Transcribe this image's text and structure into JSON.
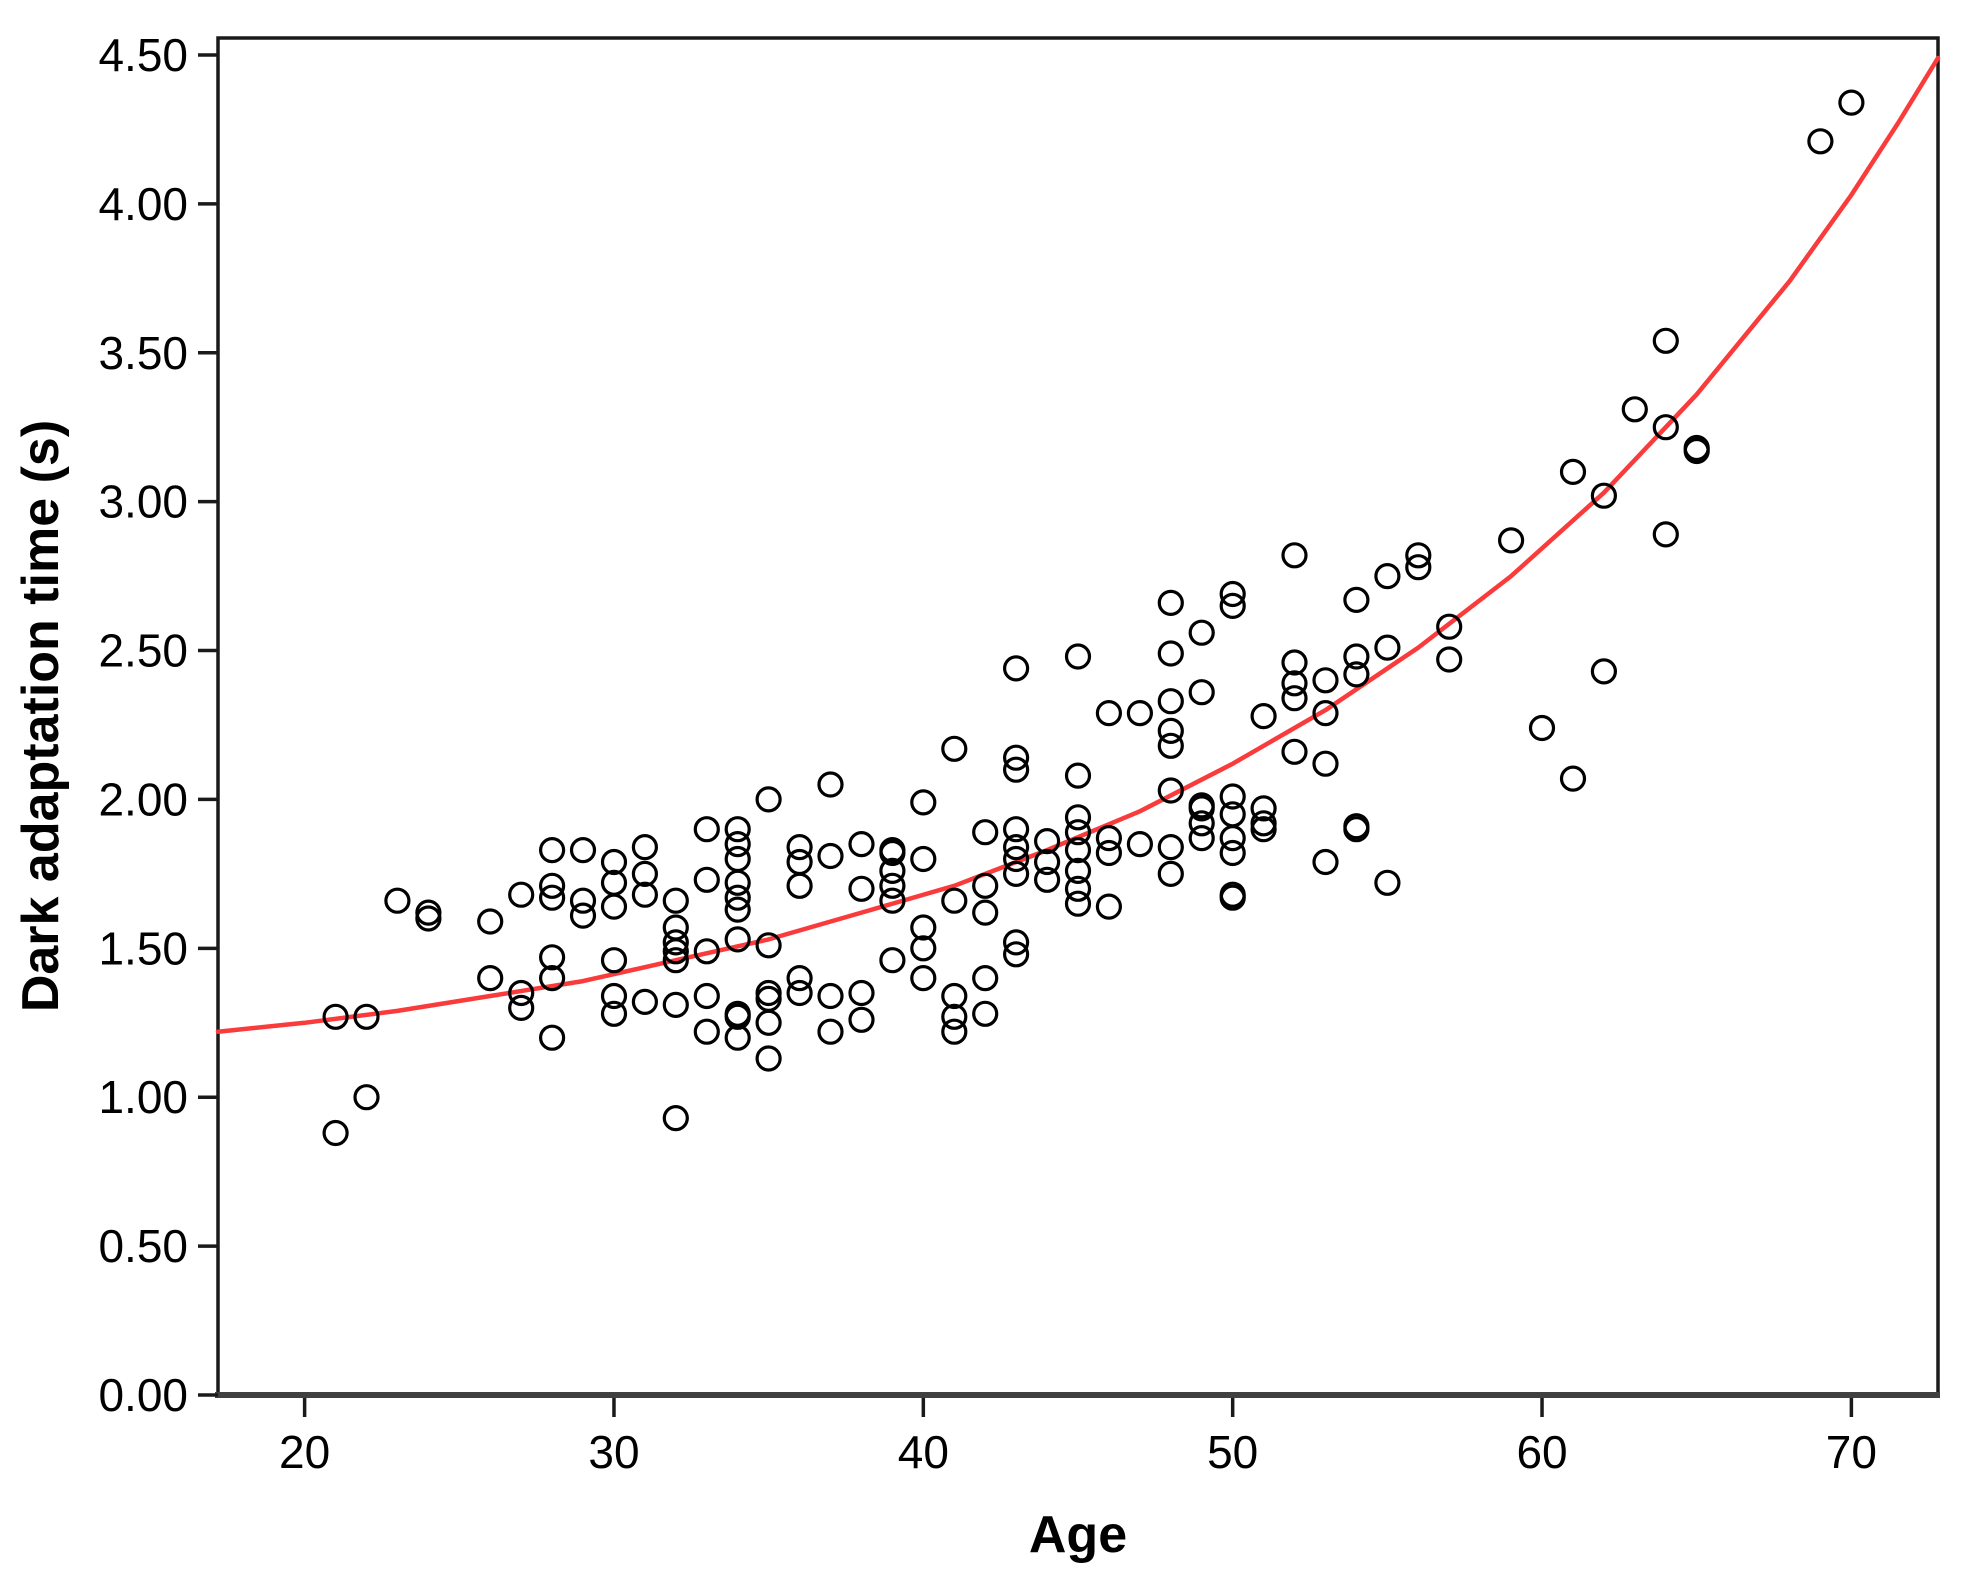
{
  "chart_data": {
    "type": "scatter",
    "title": "",
    "xlabel": "Age",
    "ylabel": "Dark adaptation time (s)",
    "xlim": [
      17.2,
      72.8
    ],
    "ylim": [
      0,
      4.557
    ],
    "grid": false,
    "legend": "none",
    "x_ticks": [
      20,
      30,
      40,
      50,
      60,
      70
    ],
    "x_tick_labels": [
      "20",
      "30",
      "40",
      "50",
      "60",
      "70"
    ],
    "y_ticks": [
      0.0,
      0.5,
      1.0,
      1.5,
      2.0,
      2.5,
      3.0,
      3.5,
      4.0,
      4.5
    ],
    "y_tick_labels": [
      "0.00",
      "0.50",
      "1.00",
      "1.50",
      "2.00",
      "2.50",
      "3.00",
      "3.50",
      "4.00",
      "4.50"
    ],
    "marker": {
      "shape": "open-circle",
      "color": "#000000",
      "radius": 11.5,
      "stroke_width": 3.2
    },
    "frame_color": "#1a1a1a",
    "baseline_color": "#404040",
    "points": [
      [
        21,
        1.27
      ],
      [
        21,
        0.88
      ],
      [
        22,
        1.27
      ],
      [
        22,
        1.0
      ],
      [
        23,
        1.66
      ],
      [
        24,
        1.62
      ],
      [
        24,
        1.6
      ],
      [
        26,
        1.59
      ],
      [
        26,
        1.4
      ],
      [
        27,
        1.68
      ],
      [
        27,
        1.35
      ],
      [
        27,
        1.3
      ],
      [
        28,
        1.83
      ],
      [
        28,
        1.71
      ],
      [
        28,
        1.67
      ],
      [
        28,
        1.47
      ],
      [
        28,
        1.4
      ],
      [
        28,
        1.2
      ],
      [
        29,
        1.83
      ],
      [
        29,
        1.66
      ],
      [
        29,
        1.61
      ],
      [
        30,
        1.79
      ],
      [
        30,
        1.72
      ],
      [
        30,
        1.64
      ],
      [
        30,
        1.46
      ],
      [
        30,
        1.34
      ],
      [
        30,
        1.28
      ],
      [
        31,
        1.84
      ],
      [
        31,
        1.75
      ],
      [
        31,
        1.68
      ],
      [
        31,
        1.32
      ],
      [
        32,
        1.66
      ],
      [
        32,
        1.57
      ],
      [
        32,
        1.52
      ],
      [
        32,
        1.49
      ],
      [
        32,
        1.46
      ],
      [
        32,
        1.31
      ],
      [
        32,
        0.93
      ],
      [
        33,
        1.9
      ],
      [
        33,
        1.73
      ],
      [
        33,
        1.49
      ],
      [
        33,
        1.34
      ],
      [
        33,
        1.22
      ],
      [
        34,
        1.9
      ],
      [
        34,
        1.85
      ],
      [
        34,
        1.8
      ],
      [
        34,
        1.72
      ],
      [
        34,
        1.67
      ],
      [
        34,
        1.63
      ],
      [
        34,
        1.53
      ],
      [
        34,
        1.28
      ],
      [
        34,
        1.27
      ],
      [
        34,
        1.2
      ],
      [
        35,
        2.0
      ],
      [
        35,
        1.51
      ],
      [
        35,
        1.35
      ],
      [
        35,
        1.33
      ],
      [
        35,
        1.25
      ],
      [
        35,
        1.13
      ],
      [
        36,
        1.84
      ],
      [
        36,
        1.79
      ],
      [
        36,
        1.71
      ],
      [
        36,
        1.4
      ],
      [
        36,
        1.35
      ],
      [
        37,
        2.05
      ],
      [
        37,
        1.81
      ],
      [
        37,
        1.34
      ],
      [
        37,
        1.22
      ],
      [
        38,
        1.85
      ],
      [
        38,
        1.7
      ],
      [
        38,
        1.35
      ],
      [
        38,
        1.26
      ],
      [
        39,
        1.83
      ],
      [
        39,
        1.82
      ],
      [
        39,
        1.76
      ],
      [
        39,
        1.71
      ],
      [
        39,
        1.66
      ],
      [
        39,
        1.46
      ],
      [
        40,
        1.99
      ],
      [
        40,
        1.8
      ],
      [
        40,
        1.57
      ],
      [
        40,
        1.5
      ],
      [
        40,
        1.4
      ],
      [
        41,
        2.17
      ],
      [
        41,
        1.66
      ],
      [
        41,
        1.34
      ],
      [
        41,
        1.27
      ],
      [
        41,
        1.22
      ],
      [
        42,
        1.89
      ],
      [
        42,
        1.71
      ],
      [
        42,
        1.62
      ],
      [
        42,
        1.4
      ],
      [
        42,
        1.28
      ],
      [
        43,
        2.44
      ],
      [
        43,
        2.14
      ],
      [
        43,
        2.1
      ],
      [
        43,
        1.9
      ],
      [
        43,
        1.84
      ],
      [
        43,
        1.8
      ],
      [
        43,
        1.75
      ],
      [
        43,
        1.52
      ],
      [
        43,
        1.48
      ],
      [
        44,
        1.86
      ],
      [
        44,
        1.79
      ],
      [
        44,
        1.73
      ],
      [
        45,
        2.48
      ],
      [
        45,
        2.08
      ],
      [
        45,
        1.94
      ],
      [
        45,
        1.89
      ],
      [
        45,
        1.83
      ],
      [
        45,
        1.76
      ],
      [
        45,
        1.7
      ],
      [
        45,
        1.65
      ],
      [
        46,
        2.29
      ],
      [
        46,
        1.87
      ],
      [
        46,
        1.82
      ],
      [
        46,
        1.64
      ],
      [
        47,
        2.29
      ],
      [
        47,
        1.85
      ],
      [
        48,
        2.66
      ],
      [
        48,
        2.49
      ],
      [
        48,
        2.33
      ],
      [
        48,
        2.23
      ],
      [
        48,
        2.18
      ],
      [
        48,
        2.03
      ],
      [
        48,
        1.84
      ],
      [
        48,
        1.75
      ],
      [
        49,
        2.56
      ],
      [
        49,
        2.36
      ],
      [
        49,
        1.98
      ],
      [
        49,
        1.97
      ],
      [
        49,
        1.92
      ],
      [
        49,
        1.87
      ],
      [
        50,
        2.69
      ],
      [
        50,
        2.65
      ],
      [
        50,
        2.01
      ],
      [
        50,
        1.95
      ],
      [
        50,
        1.87
      ],
      [
        50,
        1.82
      ],
      [
        50,
        1.68
      ],
      [
        50,
        1.67
      ],
      [
        51,
        2.28
      ],
      [
        51,
        1.97
      ],
      [
        51,
        1.92
      ],
      [
        51,
        1.9
      ],
      [
        52,
        2.82
      ],
      [
        52,
        2.46
      ],
      [
        52,
        2.39
      ],
      [
        52,
        2.34
      ],
      [
        52,
        2.16
      ],
      [
        53,
        2.4
      ],
      [
        53,
        2.29
      ],
      [
        53,
        2.12
      ],
      [
        53,
        1.79
      ],
      [
        54,
        2.67
      ],
      [
        54,
        2.48
      ],
      [
        54,
        2.42
      ],
      [
        54,
        1.91
      ],
      [
        54,
        1.9
      ],
      [
        55,
        2.75
      ],
      [
        55,
        2.51
      ],
      [
        55,
        1.72
      ],
      [
        56,
        2.82
      ],
      [
        56,
        2.78
      ],
      [
        57,
        2.58
      ],
      [
        57,
        2.47
      ],
      [
        59,
        2.87
      ],
      [
        60,
        2.24
      ],
      [
        61,
        3.1
      ],
      [
        61,
        2.07
      ],
      [
        62,
        3.02
      ],
      [
        62,
        2.43
      ],
      [
        63,
        3.31
      ],
      [
        64,
        3.54
      ],
      [
        64,
        3.25
      ],
      [
        64,
        2.89
      ],
      [
        65,
        3.18
      ],
      [
        65,
        3.17
      ],
      [
        69,
        4.21
      ],
      [
        70,
        4.34
      ]
    ],
    "trend_line": {
      "type": "fit-curve",
      "color": "#fa3b3b",
      "stroke_width": 4.5,
      "points": [
        [
          17.2,
          1.22
        ],
        [
          20,
          1.25
        ],
        [
          23,
          1.29
        ],
        [
          26,
          1.34
        ],
        [
          29,
          1.39
        ],
        [
          32,
          1.46
        ],
        [
          35,
          1.53
        ],
        [
          38,
          1.62
        ],
        [
          41,
          1.71
        ],
        [
          44,
          1.83
        ],
        [
          47,
          1.96
        ],
        [
          50,
          2.12
        ],
        [
          53,
          2.3
        ],
        [
          56,
          2.51
        ],
        [
          59,
          2.75
        ],
        [
          62,
          3.03
        ],
        [
          65,
          3.36
        ],
        [
          68,
          3.74
        ],
        [
          70,
          4.03
        ],
        [
          71.5,
          4.27
        ],
        [
          72.8,
          4.49
        ]
      ]
    }
  }
}
